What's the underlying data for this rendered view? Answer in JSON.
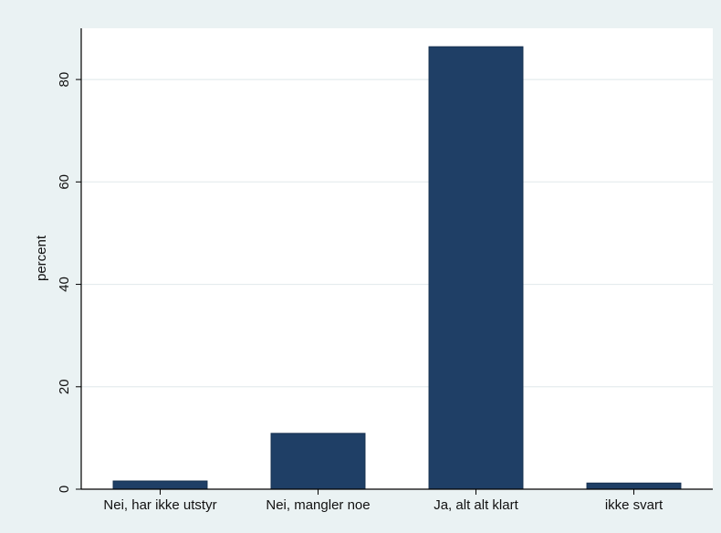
{
  "colors": {
    "background": "#eaf2f3",
    "plot_area": "#ffffff",
    "bar": "#1f3f66",
    "grid": "#e4ecee",
    "axis": "#000000"
  },
  "chart_data": {
    "type": "bar",
    "title": "",
    "xlabel": "",
    "ylabel": "percent",
    "categories": [
      "Nei, har ikke utstyr",
      "Nei, mangler noe",
      "Ja, alt alt klart",
      "ikke svart"
    ],
    "values": [
      1.6,
      10.9,
      86.4,
      1.2
    ],
    "ylim": [
      0,
      90
    ],
    "yticks": [
      0,
      20,
      40,
      60,
      80
    ],
    "grid": true,
    "legend": "none"
  }
}
